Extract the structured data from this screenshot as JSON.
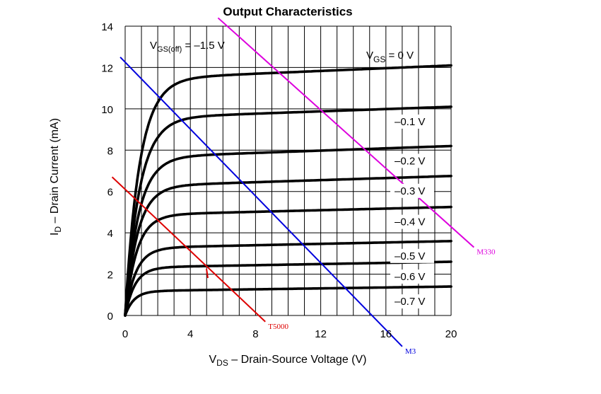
{
  "chart_data": {
    "type": "line",
    "title": "Output Characteristics",
    "xlabel": {
      "main": "V",
      "sub": "DS",
      "rest": " – Drain-Source Voltage (V)"
    },
    "ylabel": {
      "main": "I",
      "sub": "D",
      "rest": " – Drain Current (mA)"
    },
    "xlim": [
      0,
      20
    ],
    "ylim": [
      0,
      14
    ],
    "xticks": [
      0,
      4,
      8,
      12,
      16,
      20
    ],
    "yticks": [
      0,
      2,
      4,
      6,
      8,
      10,
      12,
      14
    ],
    "grid": true,
    "annotations": {
      "vgs_off": {
        "main": "V",
        "sub": "GS(off)",
        "rest": " = –1.5 V"
      },
      "vgs_header": {
        "main": "V",
        "sub": "GS",
        "rest": " = 0 V"
      }
    },
    "series": [
      {
        "name": "0 V",
        "label": "",
        "sat": 11.5,
        "end": 12.1,
        "k": 1.6
      },
      {
        "name": "–0.1 V",
        "label": "–0.1 V",
        "sat": 9.6,
        "end": 10.1,
        "k": 1.6
      },
      {
        "name": "–0.2 V",
        "label": "–0.2 V",
        "sat": 7.7,
        "end": 8.2,
        "k": 1.5
      },
      {
        "name": "–0.3 V",
        "label": "–0.3 V",
        "sat": 6.3,
        "end": 6.75,
        "k": 1.4
      },
      {
        "name": "–0.4 V",
        "label": "–0.4 V",
        "sat": 4.9,
        "end": 5.25,
        "k": 1.3
      },
      {
        "name": "–0.5 V",
        "label": "–0.5 V",
        "sat": 3.3,
        "end": 3.6,
        "k": 1.2
      },
      {
        "name": "–0.6 V",
        "label": "–0.6 V",
        "sat": 2.35,
        "end": 2.6,
        "k": 1.1
      },
      {
        "name": "–0.7 V",
        "label": "–0.7 V",
        "sat": 1.2,
        "end": 1.4,
        "k": 1.0
      }
    ],
    "load_lines": [
      {
        "name": "T5000",
        "color": "#dd0000",
        "x": [
          -0.8,
          8.6
        ],
        "y": [
          6.7,
          -0.3
        ]
      },
      {
        "name": "M3",
        "color": "#0000dd",
        "x": [
          -0.3,
          17.0
        ],
        "y": [
          12.5,
          -1.5
        ]
      },
      {
        "name": "M330",
        "color": "#dd00dd",
        "x": [
          5.7,
          21.4
        ],
        "y": [
          14.4,
          3.3
        ]
      }
    ]
  }
}
